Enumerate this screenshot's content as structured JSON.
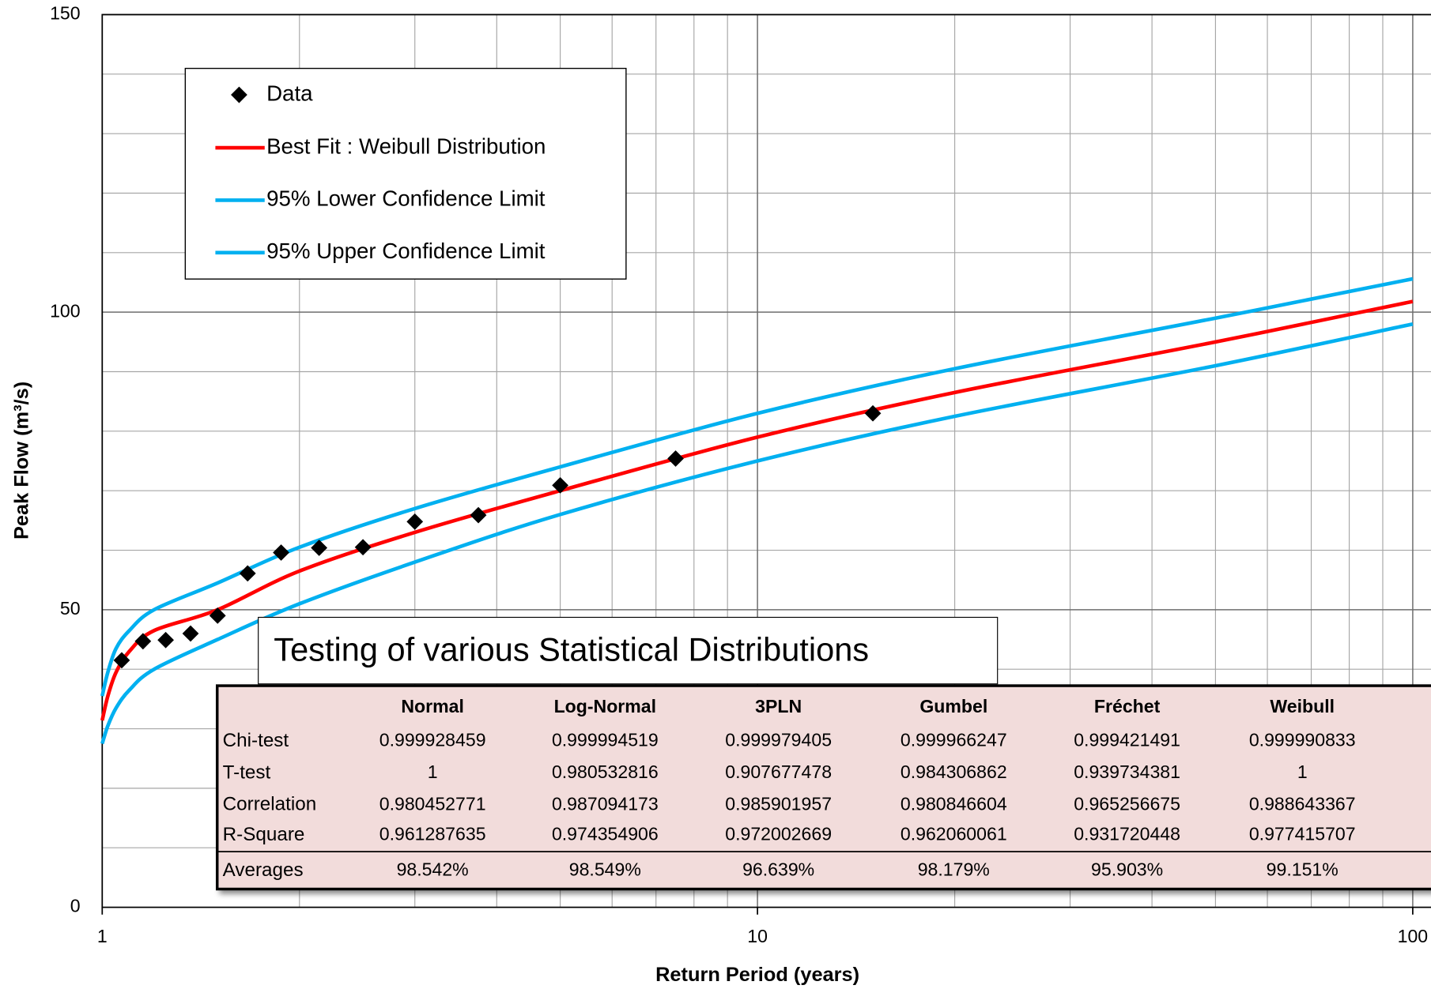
{
  "chart_data": {
    "type": "line",
    "xlabel": "Return Period (years)",
    "ylabel": "Peak Flow (m³/s)",
    "xscale": "log",
    "xlim": [
      1,
      100
    ],
    "xticks": [
      1,
      10,
      100
    ],
    "xminorticks": [
      2,
      3,
      4,
      5,
      6,
      7,
      8,
      9,
      20,
      30,
      40,
      50,
      60,
      70,
      80,
      90
    ],
    "ylim": [
      0,
      150
    ],
    "yticks": [
      0,
      50,
      100,
      150
    ],
    "yminorticks": [
      10,
      20,
      30,
      40,
      60,
      70,
      80,
      90,
      110,
      120,
      130,
      140
    ],
    "grid": true,
    "legend_position": "upper left",
    "points": {
      "name": "Data",
      "color": "#000000",
      "x": [
        1.071,
        1.154,
        1.25,
        1.364,
        1.5,
        1.667,
        1.875,
        2.143,
        2.5,
        3,
        3.75,
        5,
        7.5,
        15
      ],
      "values": [
        41.5,
        44.7,
        44.9,
        46.0,
        49.0,
        56.1,
        59.6,
        60.4,
        60.5,
        64.8,
        65.9,
        70.9,
        75.4,
        83.0
      ]
    },
    "x": [
      1,
      1.02,
      1.05,
      1.1,
      1.2,
      1.5,
      2,
      3,
      5,
      10,
      20,
      50,
      100
    ],
    "series": [
      {
        "name": "Best Fit : Weibull Distribution",
        "color": "#ff0000",
        "values": [
          31.4,
          35.5,
          39.5,
          43,
          46.5,
          50,
          56.5,
          63,
          70,
          79,
          86.5,
          95,
          101.8
        ]
      },
      {
        "name": "95% Lower Confidence Limit",
        "color": "#00b0f0",
        "values": [
          27.5,
          30.5,
          33.5,
          36.5,
          40,
          45,
          51,
          58,
          66,
          75,
          82.5,
          91,
          98
        ]
      },
      {
        "name": "95% Upper Confidence Limit",
        "color": "#00b0f0",
        "values": [
          35.5,
          39.5,
          43.5,
          46.5,
          50,
          54.5,
          60.5,
          67,
          74,
          83,
          90.5,
          99,
          105.6
        ]
      }
    ],
    "annotation": "Testing of various Statistical Distributions",
    "table": {
      "columns": [
        "Normal",
        "Log-Normal",
        "3PLN",
        "Gumbel",
        "Fréchet",
        "Weibull"
      ],
      "rows": [
        [
          "Chi-test",
          "0.999928459",
          "0.999994519",
          "0.999979405",
          "0.999966247",
          "0.999421491",
          "0.999990833"
        ],
        [
          "T-test",
          "1",
          "0.980532816",
          "0.907677478",
          "0.984306862",
          "0.939734381",
          "1"
        ],
        [
          "Correlation",
          "0.980452771",
          "0.987094173",
          "0.985901957",
          "0.980846604",
          "0.965256675",
          "0.988643367"
        ],
        [
          "R-Square",
          "0.961287635",
          "0.974354906",
          "0.972002669",
          "0.962060061",
          "0.931720448",
          "0.977415707"
        ],
        [
          "Averages",
          "98.542%",
          "98.549%",
          "96.639%",
          "98.179%",
          "95.903%",
          "99.151%"
        ]
      ]
    }
  }
}
